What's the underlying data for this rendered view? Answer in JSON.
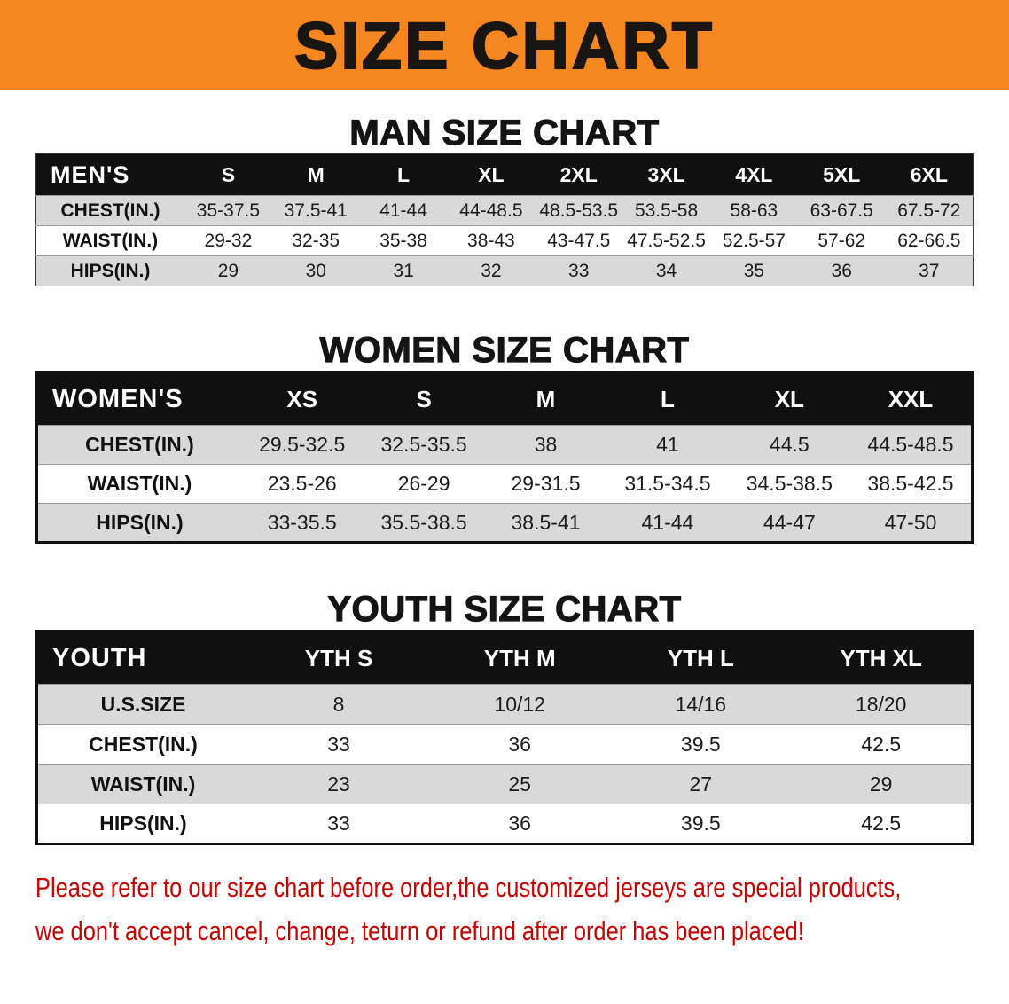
{
  "banner": {
    "title": "SIZE CHART",
    "bg_color": "#F6861F",
    "text_color": "#181512"
  },
  "sections": [
    {
      "heading": "MAN SIZE CHART",
      "table": {
        "corner_label": "MEN'S",
        "columns": [
          "S",
          "M",
          "L",
          "XL",
          "2XL",
          "3XL",
          "4XL",
          "5XL",
          "6XL"
        ],
        "rows": [
          {
            "label": "CHEST(IN.)",
            "values": [
              "35-37.5",
              "37.5-41",
              "41-44",
              "44-48.5",
              "48.5-53.5",
              "53.5-58",
              "58-63",
              "63-67.5",
              "67.5-72"
            ]
          },
          {
            "label": "WAIST(IN.)",
            "values": [
              "29-32",
              "32-35",
              "35-38",
              "38-43",
              "43-47.5",
              "47.5-52.5",
              "52.5-57",
              "57-62",
              "62-66.5"
            ]
          },
          {
            "label": "HIPS(IN.)",
            "values": [
              "29",
              "30",
              "31",
              "32",
              "33",
              "34",
              "35",
              "36",
              "37"
            ]
          }
        ]
      }
    },
    {
      "heading": "WOMEN SIZE CHART",
      "table": {
        "corner_label": "WOMEN'S",
        "columns": [
          "XS",
          "S",
          "M",
          "L",
          "XL",
          "XXL"
        ],
        "rows": [
          {
            "label": "CHEST(IN.)",
            "values": [
              "29.5-32.5",
              "32.5-35.5",
              "38",
              "41",
              "44.5",
              "44.5-48.5"
            ]
          },
          {
            "label": "WAIST(IN.)",
            "values": [
              "23.5-26",
              "26-29",
              "29-31.5",
              "31.5-34.5",
              "34.5-38.5",
              "38.5-42.5"
            ]
          },
          {
            "label": "HIPS(IN.)",
            "values": [
              "33-35.5",
              "35.5-38.5",
              "38.5-41",
              "41-44",
              "44-47",
              "47-50"
            ]
          }
        ]
      }
    },
    {
      "heading": "YOUTH SIZE CHART",
      "table": {
        "corner_label": "YOUTH",
        "columns": [
          "YTH S",
          "YTH M",
          "YTH L",
          "YTH XL"
        ],
        "rows": [
          {
            "label": "U.S.SIZE",
            "values": [
              "8",
              "10/12",
              "14/16",
              "18/20"
            ]
          },
          {
            "label": "CHEST(IN.)",
            "values": [
              "33",
              "36",
              "39.5",
              "42.5"
            ]
          },
          {
            "label": "WAIST(IN.)",
            "values": [
              "23",
              "25",
              "27",
              "29"
            ]
          },
          {
            "label": "HIPS(IN.)",
            "values": [
              "33",
              "36",
              "39.5",
              "42.5"
            ]
          }
        ]
      }
    }
  ],
  "footer": {
    "line1": "Please refer to our size chart before order,the customized jerseys are special products,",
    "line2": "we don't accept cancel, change, teturn or refund after order has been placed!",
    "text_color": "#C40000"
  }
}
